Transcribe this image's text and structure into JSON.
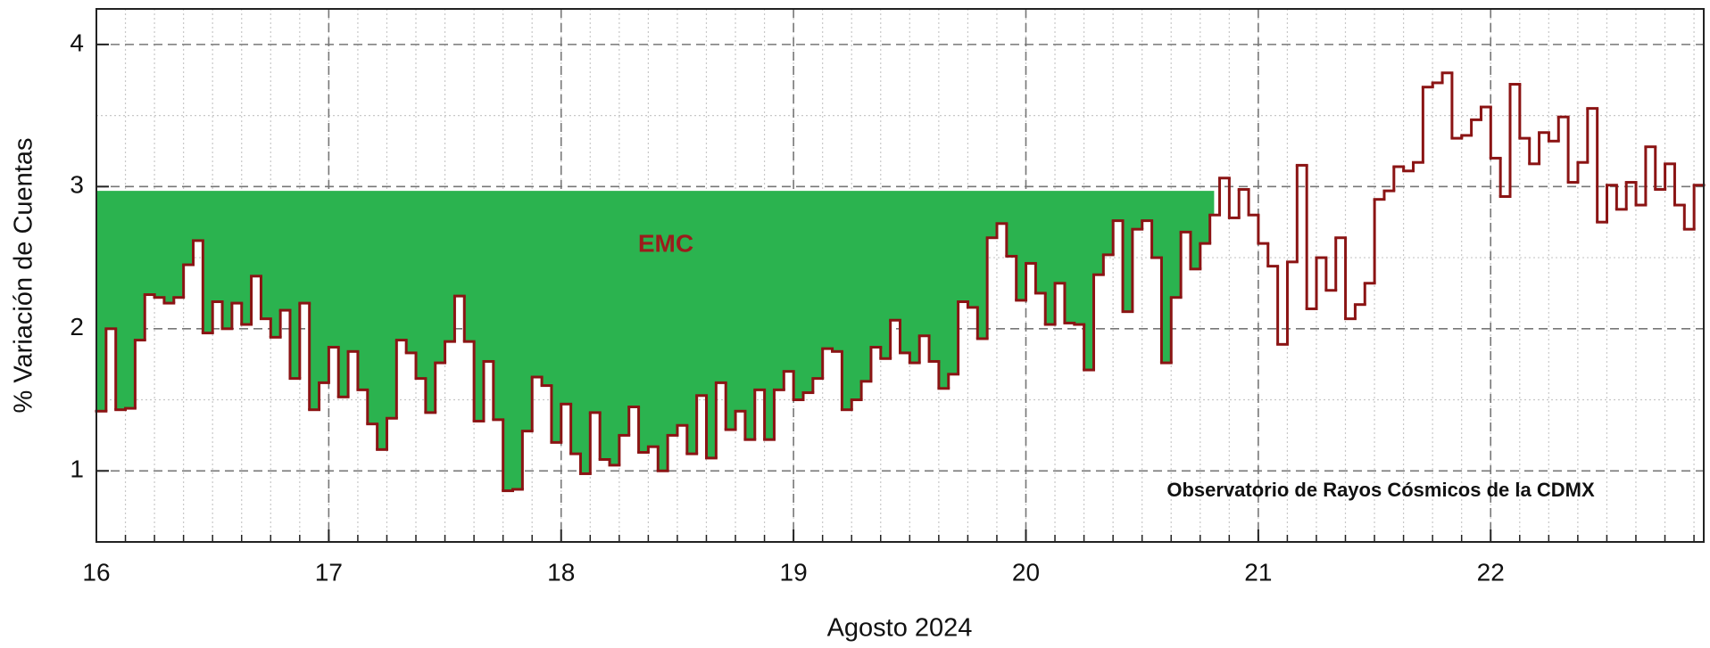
{
  "chart_data": {
    "type": "step",
    "xlabel": "Agosto 2024",
    "ylabel": "% Variación de Cuentas",
    "annotation": "Observatorio de Rayos Cósmicos de la CDMX",
    "shaded_region": {
      "label": "EMC",
      "ymax": 2.97,
      "x": [
        16,
        20.81
      ],
      "color": "#2bb34f"
    },
    "xlim": [
      16,
      22.917
    ],
    "ylim": [
      0.5,
      4.25
    ],
    "xticks": [
      16,
      17,
      18,
      19,
      20,
      21,
      22
    ],
    "yticks": [
      1,
      2,
      3,
      4
    ],
    "xminor_step": 0.125,
    "yminor": [
      0.5,
      1.5,
      2.5,
      3.5
    ],
    "grid": true,
    "color": "#8b1414",
    "values": [
      1.42,
      2.0,
      1.43,
      1.44,
      1.92,
      2.24,
      2.22,
      2.18,
      2.22,
      2.45,
      2.62,
      1.97,
      2.19,
      2.0,
      2.18,
      2.03,
      2.37,
      2.07,
      1.94,
      2.13,
      1.65,
      2.18,
      1.43,
      1.62,
      1.87,
      1.52,
      1.84,
      1.57,
      1.33,
      1.15,
      1.37,
      1.92,
      1.83,
      1.65,
      1.41,
      1.76,
      1.91,
      2.23,
      1.91,
      1.35,
      1.77,
      1.36,
      0.86,
      0.87,
      1.28,
      1.66,
      1.6,
      1.2,
      1.47,
      1.12,
      0.98,
      1.41,
      1.08,
      1.04,
      1.25,
      1.45,
      1.13,
      1.17,
      1.0,
      1.25,
      1.32,
      1.12,
      1.53,
      1.09,
      1.62,
      1.29,
      1.42,
      1.22,
      1.57,
      1.22,
      1.57,
      1.7,
      1.5,
      1.55,
      1.65,
      1.86,
      1.84,
      1.43,
      1.5,
      1.63,
      1.87,
      1.79,
      2.06,
      1.83,
      1.76,
      1.95,
      1.77,
      1.58,
      1.68,
      2.19,
      2.15,
      1.93,
      2.64,
      2.74,
      2.51,
      2.2,
      2.46,
      2.25,
      2.03,
      2.32,
      2.04,
      2.03,
      1.71,
      2.38,
      2.52,
      2.76,
      2.12,
      2.7,
      2.76,
      2.5,
      1.76,
      2.22,
      2.68,
      2.42,
      2.6,
      2.8,
      3.06,
      2.78,
      2.98,
      2.8,
      2.6,
      2.44,
      1.89,
      2.47,
      3.15,
      2.14,
      2.5,
      2.27,
      2.64,
      2.07,
      2.17,
      2.32,
      2.91,
      2.97,
      3.14,
      3.11,
      3.17,
      3.7,
      3.73,
      3.8,
      3.34,
      3.36,
      3.47,
      3.56,
      3.2,
      2.93,
      3.72,
      3.34,
      3.16,
      3.38,
      3.32,
      3.49,
      3.03,
      3.17,
      3.55,
      2.75,
      3.01,
      2.84,
      3.03,
      2.87,
      3.28,
      2.98,
      3.16,
      2.87,
      2.7,
      3.01
    ]
  }
}
